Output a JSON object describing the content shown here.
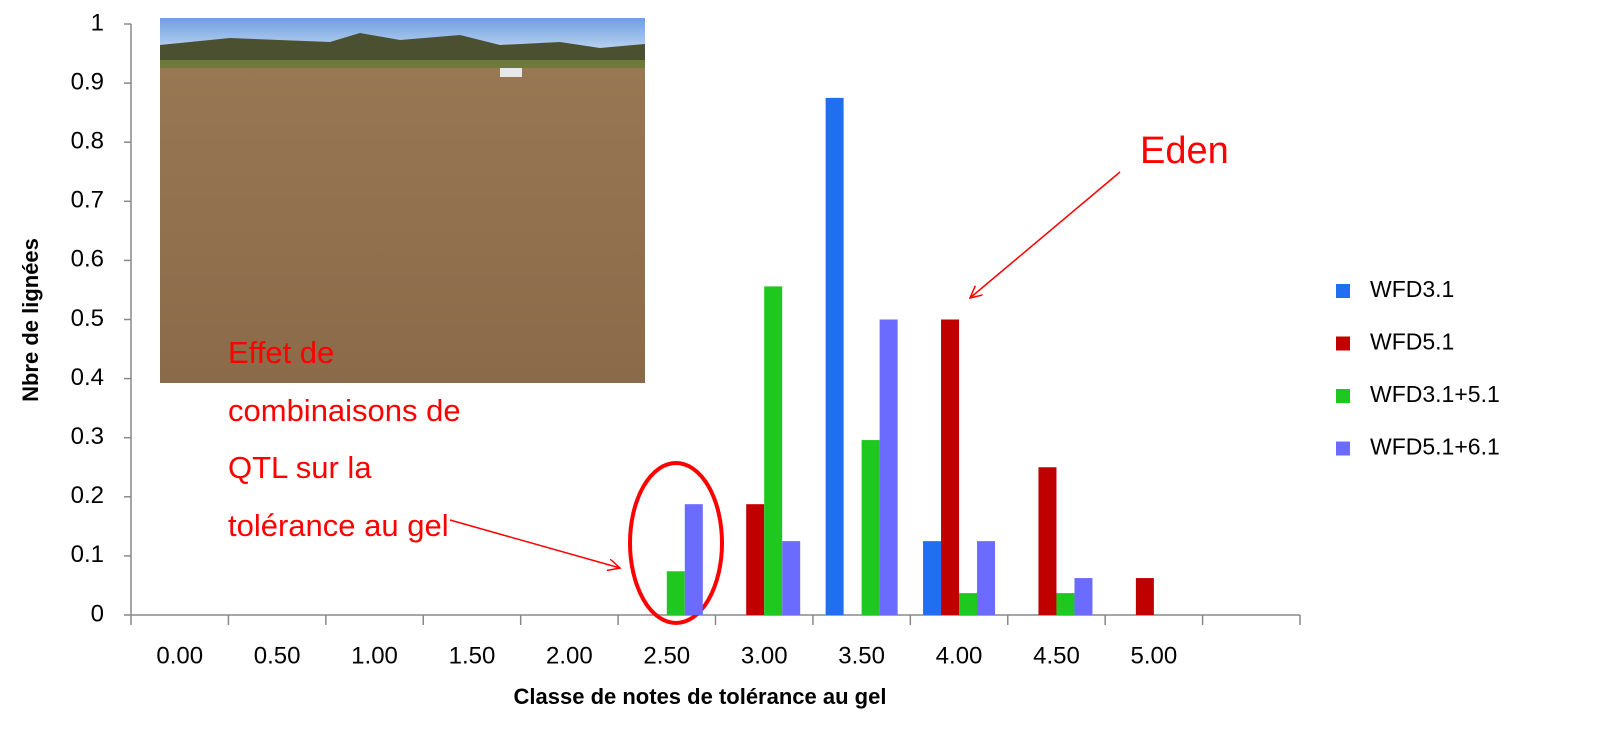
{
  "chart_data": {
    "type": "bar",
    "x_label": "Classe de notes de tolérance au gel",
    "y_label": "Nbre de lignées",
    "categories": [
      "0.00",
      "0.50",
      "1.00",
      "1.50",
      "2.00",
      "2.50",
      "3.00",
      "3.50",
      "4.00",
      "4.50",
      "5.00",
      null
    ],
    "series": [
      {
        "name": "WFD3.1",
        "color": "#1f6ff0",
        "values": [
          0,
          0,
          0,
          0,
          0,
          0,
          0,
          0.875,
          0.125,
          0,
          0,
          0
        ]
      },
      {
        "name": "WFD5.1",
        "color": "#c00000",
        "values": [
          0,
          0,
          0,
          0,
          0,
          0,
          0.1875,
          0,
          0.5,
          0.25,
          0.0625,
          0
        ]
      },
      {
        "name": "WFD3.1+5.1",
        "color": "#1ec81e",
        "values": [
          0,
          0,
          0,
          0,
          0,
          0.074,
          0.556,
          0.296,
          0.037,
          0.037,
          0,
          0
        ]
      },
      {
        "name": "WFD5.1+6.1",
        "color": "#6b6bff",
        "values": [
          0,
          0,
          0,
          0,
          0,
          0.1875,
          0.125,
          0.5,
          0.125,
          0.0625,
          0,
          0
        ]
      }
    ],
    "ylim": [
      0,
      1
    ],
    "yticks": [
      0,
      0.1,
      0.2,
      0.3,
      0.4,
      0.5,
      0.6,
      0.7,
      0.8,
      0.9,
      1
    ],
    "legend": "right",
    "annotations": {
      "eden": "Eden",
      "effet": [
        "Effet de",
        "combinaisons de",
        "QTL sur la",
        "tolérance au gel"
      ]
    }
  }
}
